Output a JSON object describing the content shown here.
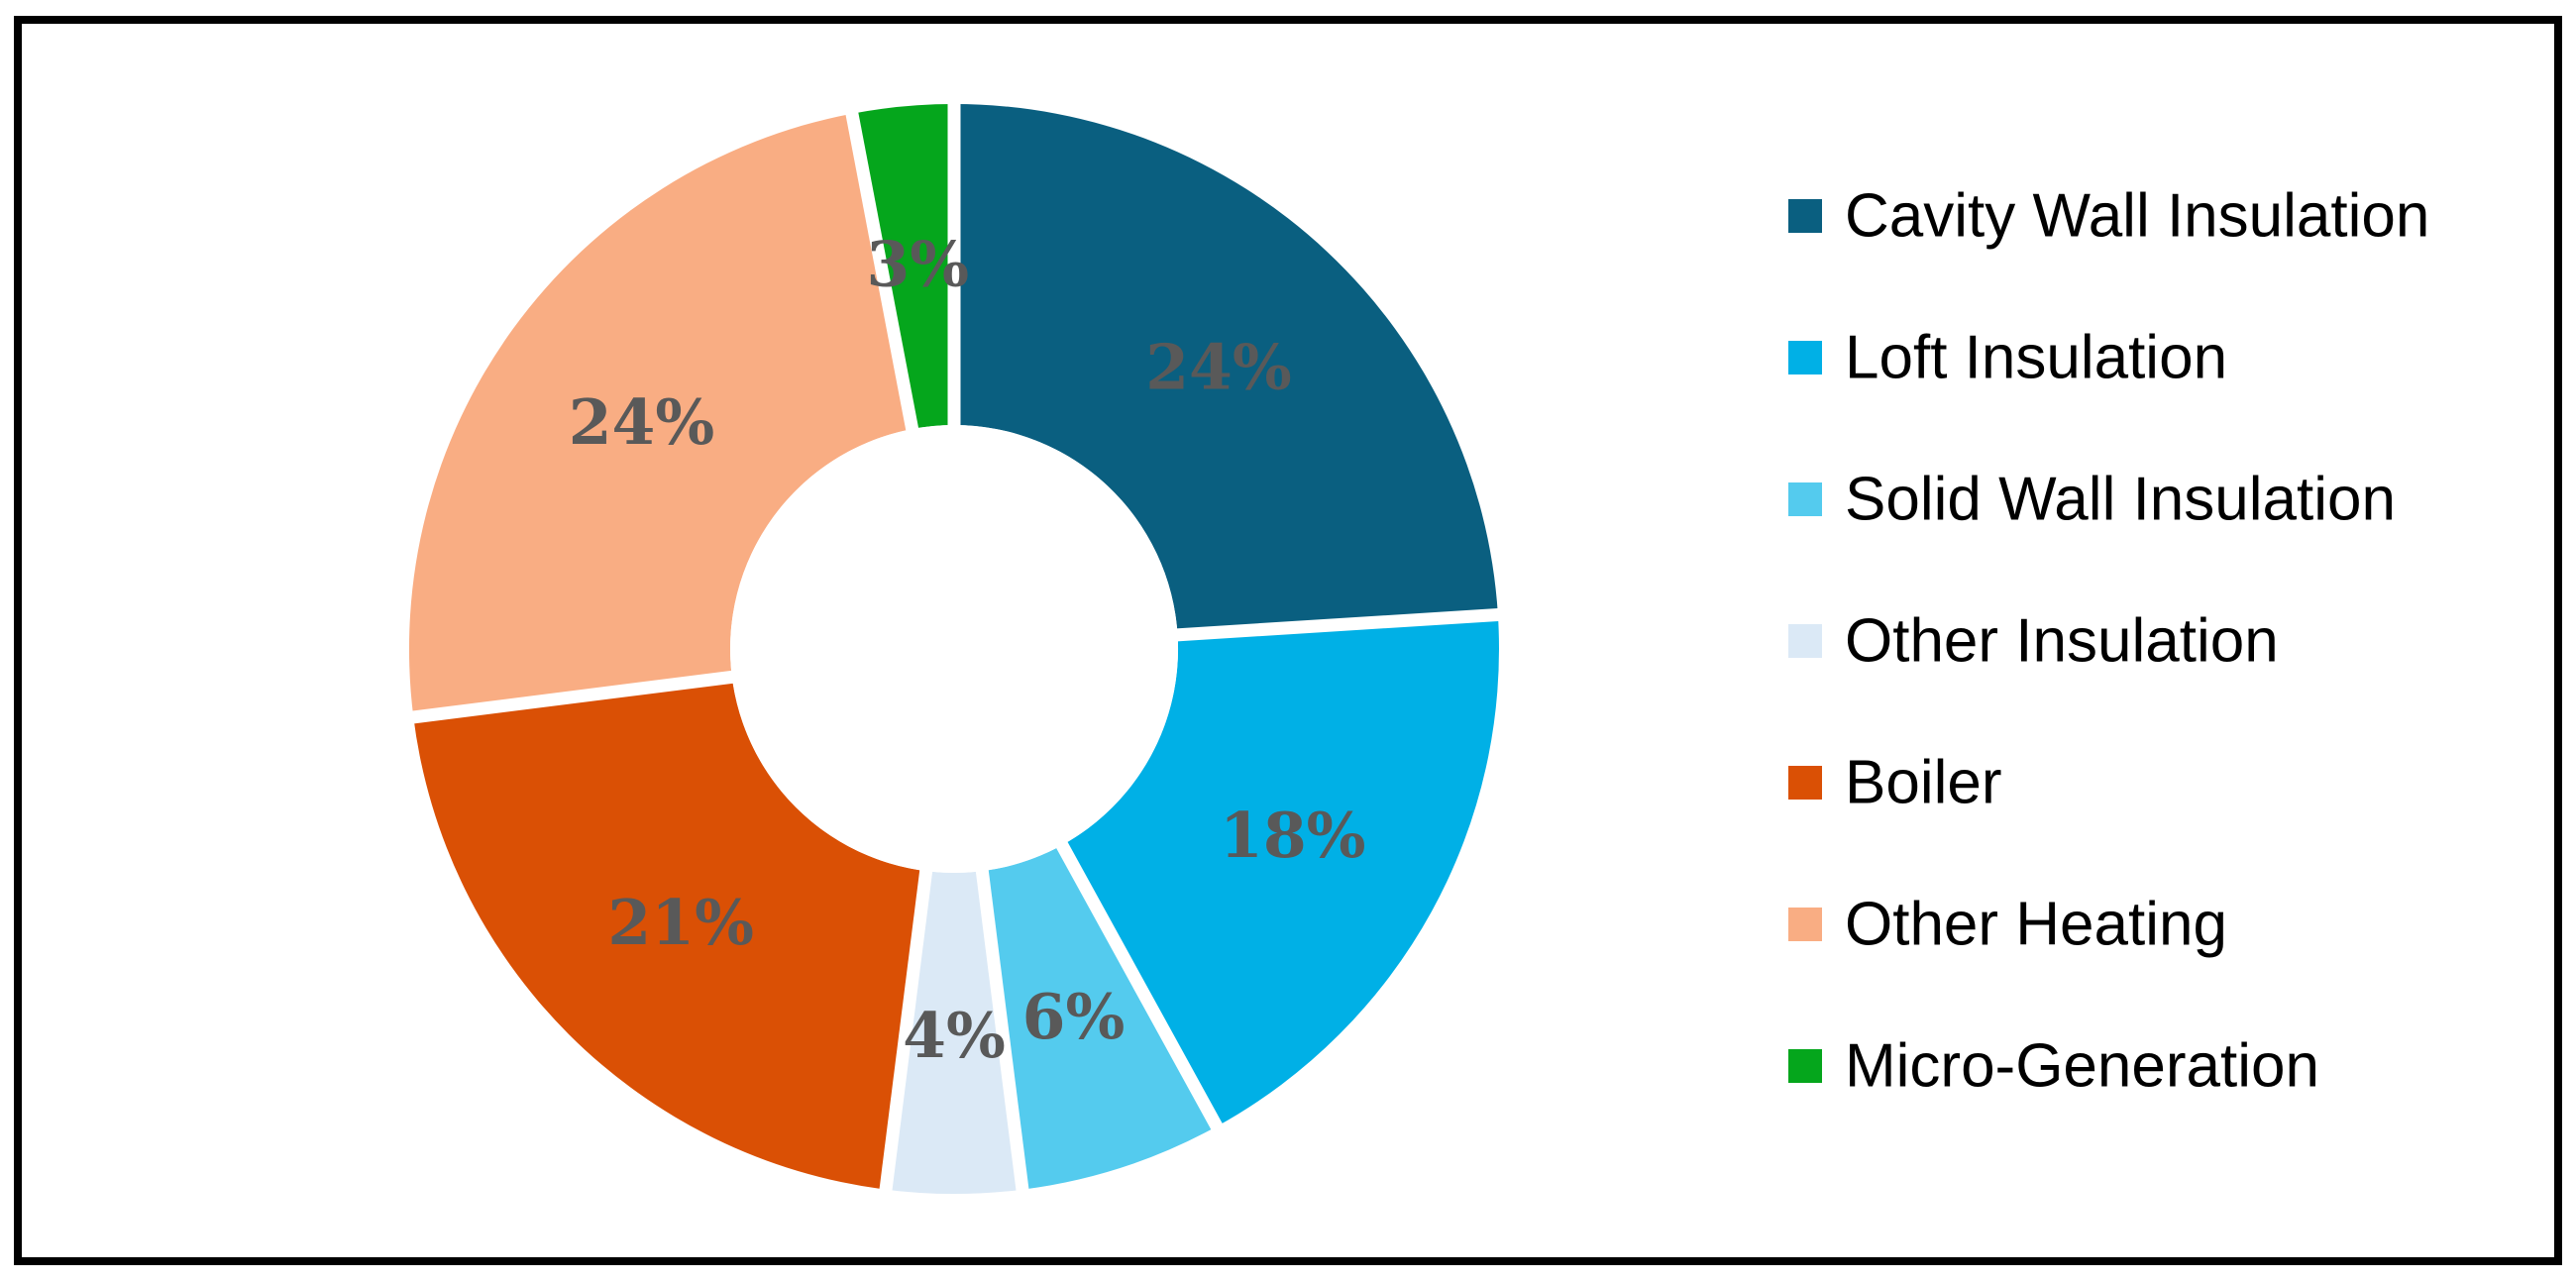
{
  "chart_data": {
    "type": "pie",
    "subtype": "doughnut",
    "title": "",
    "categories": [
      "Cavity Wall Insulation",
      "Loft Insulation",
      "Solid Wall Insulation",
      "Other Insulation",
      "Boiler",
      "Other Heating",
      "Micro-Generation"
    ],
    "values": [
      24,
      18,
      6,
      4,
      21,
      24,
      3
    ],
    "data_labels": [
      "24%",
      "18%",
      "6%",
      "4%",
      "21%",
      "24%",
      "3%"
    ],
    "colors": [
      "#0A5F80",
      "#00B0E6",
      "#54CBEE",
      "#DBE9F6",
      "#DA5005",
      "#F9AD83",
      "#05A61C"
    ],
    "data_label_color": "#595959",
    "hole_ratio": 0.41,
    "start_angle_deg": 0,
    "direction": "clockwise",
    "gap_color": "#FFFFFF",
    "legend": {
      "position": "right",
      "entries": [
        "Cavity Wall Insulation",
        "Loft Insulation",
        "Solid Wall Insulation",
        "Other Insulation",
        "Boiler",
        "Other Heating",
        "Micro-Generation"
      ],
      "text_color": "#000000"
    },
    "frame_border_color": "#000000"
  }
}
